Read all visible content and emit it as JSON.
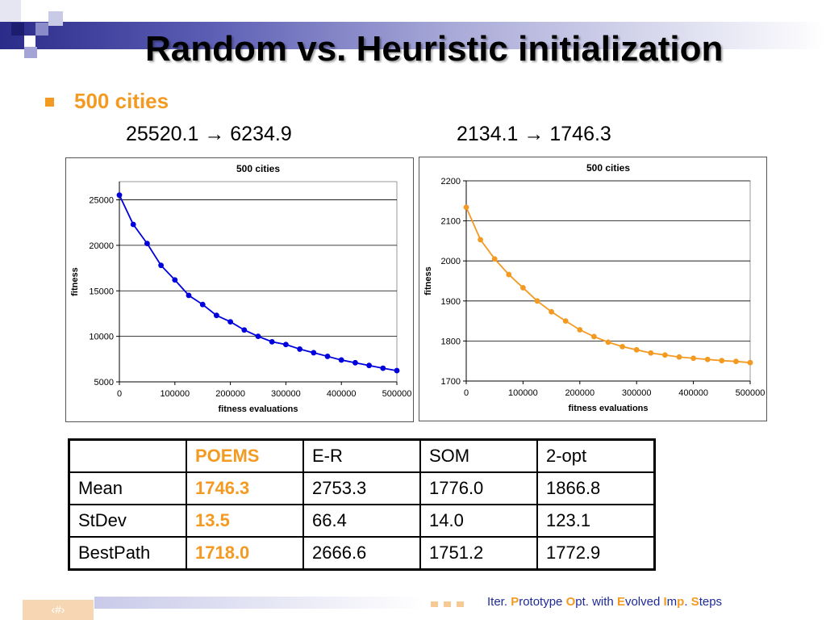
{
  "slide": {
    "title": "Random vs. Heuristic initialization",
    "bullet": "500 cities",
    "left_transform": {
      "from": "25520.1",
      "arrow": "→",
      "to": "6234.9"
    },
    "right_transform": {
      "from": "2134.1",
      "arrow": "→",
      "to": "1746.3"
    }
  },
  "colors": {
    "accent": "#f39a22",
    "blue_series": "#0000dd",
    "orange_series": "#f39a22",
    "footer_text": "#1f2a99"
  },
  "chart_data": [
    {
      "type": "line",
      "title": "500 cities",
      "xlabel": "fitness evaluations",
      "ylabel": "fitness",
      "xlim": [
        0,
        500000
      ],
      "ylim": [
        5000,
        27000
      ],
      "x_ticks": [
        0,
        100000,
        200000,
        300000,
        400000,
        500000
      ],
      "y_ticks": [
        5000,
        10000,
        15000,
        20000,
        25000
      ],
      "grid": "horizontal",
      "series": [
        {
          "color": "#0000dd",
          "x": [
            0,
            25000,
            50000,
            75000,
            100000,
            125000,
            150000,
            175000,
            200000,
            225000,
            250000,
            275000,
            300000,
            325000,
            350000,
            375000,
            400000,
            425000,
            450000,
            475000,
            500000
          ],
          "y": [
            25520,
            22300,
            20200,
            17800,
            16200,
            14500,
            13500,
            12300,
            11600,
            10700,
            10000,
            9400,
            9100,
            8600,
            8200,
            7800,
            7400,
            7100,
            6800,
            6500,
            6235
          ]
        }
      ]
    },
    {
      "type": "line",
      "title": "500 cities",
      "xlabel": "fitness evaluations",
      "ylabel": "fitness",
      "xlim": [
        0,
        500000
      ],
      "ylim": [
        1700,
        2200
      ],
      "x_ticks": [
        0,
        100000,
        200000,
        300000,
        400000,
        500000
      ],
      "y_ticks": [
        1700,
        1800,
        1900,
        2000,
        2100,
        2200
      ],
      "grid": "horizontal",
      "series": [
        {
          "color": "#f39a22",
          "x": [
            0,
            25000,
            50000,
            75000,
            100000,
            125000,
            150000,
            175000,
            200000,
            225000,
            250000,
            275000,
            300000,
            325000,
            350000,
            375000,
            400000,
            425000,
            450000,
            475000,
            500000
          ],
          "y": [
            2134,
            2053,
            2005,
            1966,
            1933,
            1900,
            1873,
            1850,
            1828,
            1811,
            1797,
            1786,
            1778,
            1770,
            1765,
            1760,
            1757,
            1754,
            1751,
            1749,
            1746
          ]
        }
      ]
    }
  ],
  "table": {
    "header": [
      "",
      "POEMS",
      "E-R",
      "SOM",
      "2-opt"
    ],
    "rows": [
      [
        "Mean",
        "1746.3",
        "2753.3",
        "1776.0",
        "1866.8"
      ],
      [
        "StDev",
        "13.5",
        "66.4",
        "14.0",
        "123.1"
      ],
      [
        "BestPath",
        "1718.0",
        "2666.6",
        "1751.2",
        "1772.9"
      ]
    ]
  },
  "footer": {
    "page": "‹#›",
    "text_parts": [
      {
        "t": "Iter. ",
        "hl": false
      },
      {
        "t": "P",
        "hl": true
      },
      {
        "t": "rototype ",
        "hl": false
      },
      {
        "t": "O",
        "hl": true
      },
      {
        "t": "pt. with ",
        "hl": false
      },
      {
        "t": "E",
        "hl": true
      },
      {
        "t": "volved ",
        "hl": false
      },
      {
        "t": "I",
        "hl": true
      },
      {
        "t": "m",
        "hl": false
      },
      {
        "t": "p",
        "hl": true
      },
      {
        "t": ". ",
        "hl": false
      },
      {
        "t": "S",
        "hl": true
      },
      {
        "t": "teps",
        "hl": false
      }
    ]
  }
}
